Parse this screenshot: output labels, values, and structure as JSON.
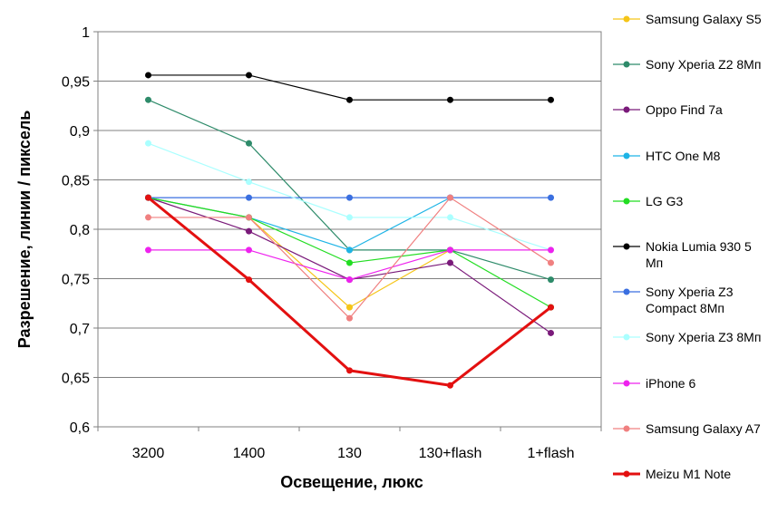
{
  "chart_data": {
    "type": "line",
    "xlabel": "Освещение, люкс",
    "ylabel": "Разрешение, линии / пиксель",
    "categories": [
      "3200",
      "1400",
      "130",
      "130+flash",
      "1+flash"
    ],
    "ylim": [
      0.6,
      1
    ],
    "yticks": [
      0.6,
      0.65,
      0.7,
      0.75,
      0.8,
      0.85,
      0.9,
      0.95,
      1
    ],
    "ytick_labels": [
      "0,6",
      "0,65",
      "0,7",
      "0,75",
      "0,8",
      "0,85",
      "0,9",
      "0,95",
      "1"
    ],
    "grid": "horizontal",
    "legend_position": "right",
    "series": [
      {
        "name": "Samsung Galaxy S5",
        "color": "#f5c518",
        "values": [
          0.832,
          0.812,
          0.721,
          0.779,
          null
        ]
      },
      {
        "name": "Sony Xperia Z2 8Мп",
        "color": "#2e8b6a",
        "values": [
          0.931,
          0.887,
          0.779,
          0.779,
          0.749
        ]
      },
      {
        "name": "Oppo Find 7a",
        "color": "#7a1a7a",
        "values": [
          0.832,
          0.798,
          0.749,
          0.766,
          0.695
        ]
      },
      {
        "name": "HTC One M8",
        "color": "#1eb4e6",
        "values": [
          0.832,
          0.812,
          0.779,
          0.832,
          null
        ]
      },
      {
        "name": "LG G3",
        "color": "#22dd22",
        "values": [
          0.832,
          0.812,
          0.766,
          0.779,
          0.721
        ]
      },
      {
        "name": "Nokia Lumia 930 5 Мп",
        "color": "#000000",
        "values": [
          0.956,
          0.956,
          0.931,
          0.931,
          0.931
        ]
      },
      {
        "name": "Sony Xperia Z3 Compact 8Мп",
        "color": "#3a6fe0",
        "values": [
          0.832,
          0.832,
          0.832,
          0.832,
          0.832
        ]
      },
      {
        "name": "Sony Xperia Z3 8Мп",
        "color": "#aaffff",
        "values": [
          0.887,
          0.848,
          0.812,
          0.812,
          0.779
        ]
      },
      {
        "name": "iPhone 6",
        "color": "#ee22ee",
        "values": [
          0.779,
          0.779,
          0.749,
          0.779,
          0.779
        ]
      },
      {
        "name": "Samsung Galaxy A7",
        "color": "#f08080",
        "values": [
          0.812,
          0.812,
          0.71,
          0.832,
          0.766
        ]
      },
      {
        "name": "Meizu M1 Note",
        "color": "#e31010",
        "values": [
          0.832,
          0.749,
          0.657,
          0.642,
          0.721
        ]
      }
    ]
  }
}
